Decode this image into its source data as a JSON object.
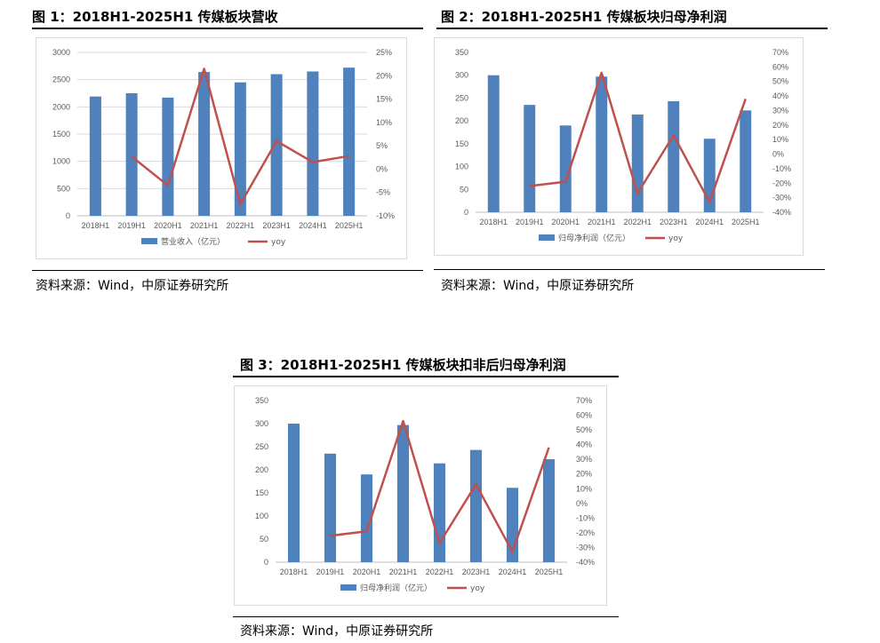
{
  "figures": [
    {
      "title": "图 1：2018H1-2025H1 传媒板块营收",
      "source": "资料来源：Wind，中原证券研究所"
    },
    {
      "title": "图 2：2018H1-2025H1 传媒板块归母净利润",
      "source": "资料来源：Wind，中原证券研究所"
    },
    {
      "title": "图 3：2018H1-2025H1 传媒板块扣非后归母净利润",
      "source": "资料来源：Wind，中原证券研究所"
    }
  ],
  "colors": {
    "bar": "#4f81bd",
    "line": "#c0504d",
    "grid": "#d9d9d9",
    "axis": "#595959"
  },
  "chart_data": [
    {
      "type": "bar",
      "categories": [
        "2018H1",
        "2019H1",
        "2020H1",
        "2021H1",
        "2022H1",
        "2023H1",
        "2024H1",
        "2025H1"
      ],
      "series": [
        {
          "name": "营业收入（亿元）",
          "type": "bar",
          "axis": "left",
          "values": [
            2190,
            2250,
            2170,
            2640,
            2450,
            2600,
            2650,
            2720
          ]
        },
        {
          "name": "yoy",
          "type": "line",
          "axis": "right",
          "values": [
            null,
            2.7,
            -3.5,
            21.5,
            -7.5,
            6.0,
            1.5,
            2.8
          ]
        }
      ],
      "y_left": {
        "min": 0,
        "max": 3000,
        "step": 500,
        "ticks": [
          "0",
          "500",
          "1000",
          "1500",
          "2000",
          "2500",
          "3000"
        ]
      },
      "y_right": {
        "min": -10,
        "max": 25,
        "step": 5,
        "ticks": [
          "-10%",
          "-5%",
          "0%",
          "5%",
          "10%",
          "15%",
          "20%",
          "25%"
        ]
      },
      "grid": true,
      "legend": "bottom"
    },
    {
      "type": "bar",
      "categories": [
        "2018H1",
        "2019H1",
        "2020H1",
        "2021H1",
        "2022H1",
        "2023H1",
        "2024H1",
        "2025H1"
      ],
      "series": [
        {
          "name": "归母净利润（亿元）",
          "type": "bar",
          "axis": "left",
          "values": [
            300,
            235,
            190,
            297,
            214,
            243,
            161,
            223
          ]
        },
        {
          "name": "yoy",
          "type": "line",
          "axis": "right",
          "values": [
            null,
            -22,
            -19,
            56,
            -27,
            13,
            -33,
            38
          ]
        }
      ],
      "y_left": {
        "min": 0,
        "max": 350,
        "step": 50,
        "ticks": [
          "0",
          "50",
          "100",
          "150",
          "200",
          "250",
          "300",
          "350"
        ]
      },
      "y_right": {
        "min": -40,
        "max": 70,
        "step": 10,
        "ticks": [
          "-40%",
          "-30%",
          "-20%",
          "-10%",
          "0%",
          "10%",
          "20%",
          "30%",
          "40%",
          "50%",
          "60%",
          "70%"
        ]
      },
      "grid": false,
      "legend": "bottom"
    },
    {
      "type": "bar",
      "categories": [
        "2018H1",
        "2019H1",
        "2020H1",
        "2021H1",
        "2022H1",
        "2023H1",
        "2024H1",
        "2025H1"
      ],
      "series": [
        {
          "name": "归母净利润（亿元）",
          "type": "bar",
          "axis": "left",
          "values": [
            300,
            235,
            190,
            297,
            214,
            243,
            161,
            223
          ]
        },
        {
          "name": "yoy",
          "type": "line",
          "axis": "right",
          "values": [
            null,
            -22,
            -19,
            56,
            -27,
            13,
            -33,
            38
          ]
        }
      ],
      "y_left": {
        "min": 0,
        "max": 350,
        "step": 50,
        "ticks": [
          "0",
          "50",
          "100",
          "150",
          "200",
          "250",
          "300",
          "350"
        ]
      },
      "y_right": {
        "min": -40,
        "max": 70,
        "step": 10,
        "ticks": [
          "-40%",
          "-30%",
          "-20%",
          "-10%",
          "0%",
          "10%",
          "20%",
          "30%",
          "40%",
          "50%",
          "60%",
          "70%"
        ]
      },
      "grid": false,
      "legend": "bottom"
    }
  ]
}
